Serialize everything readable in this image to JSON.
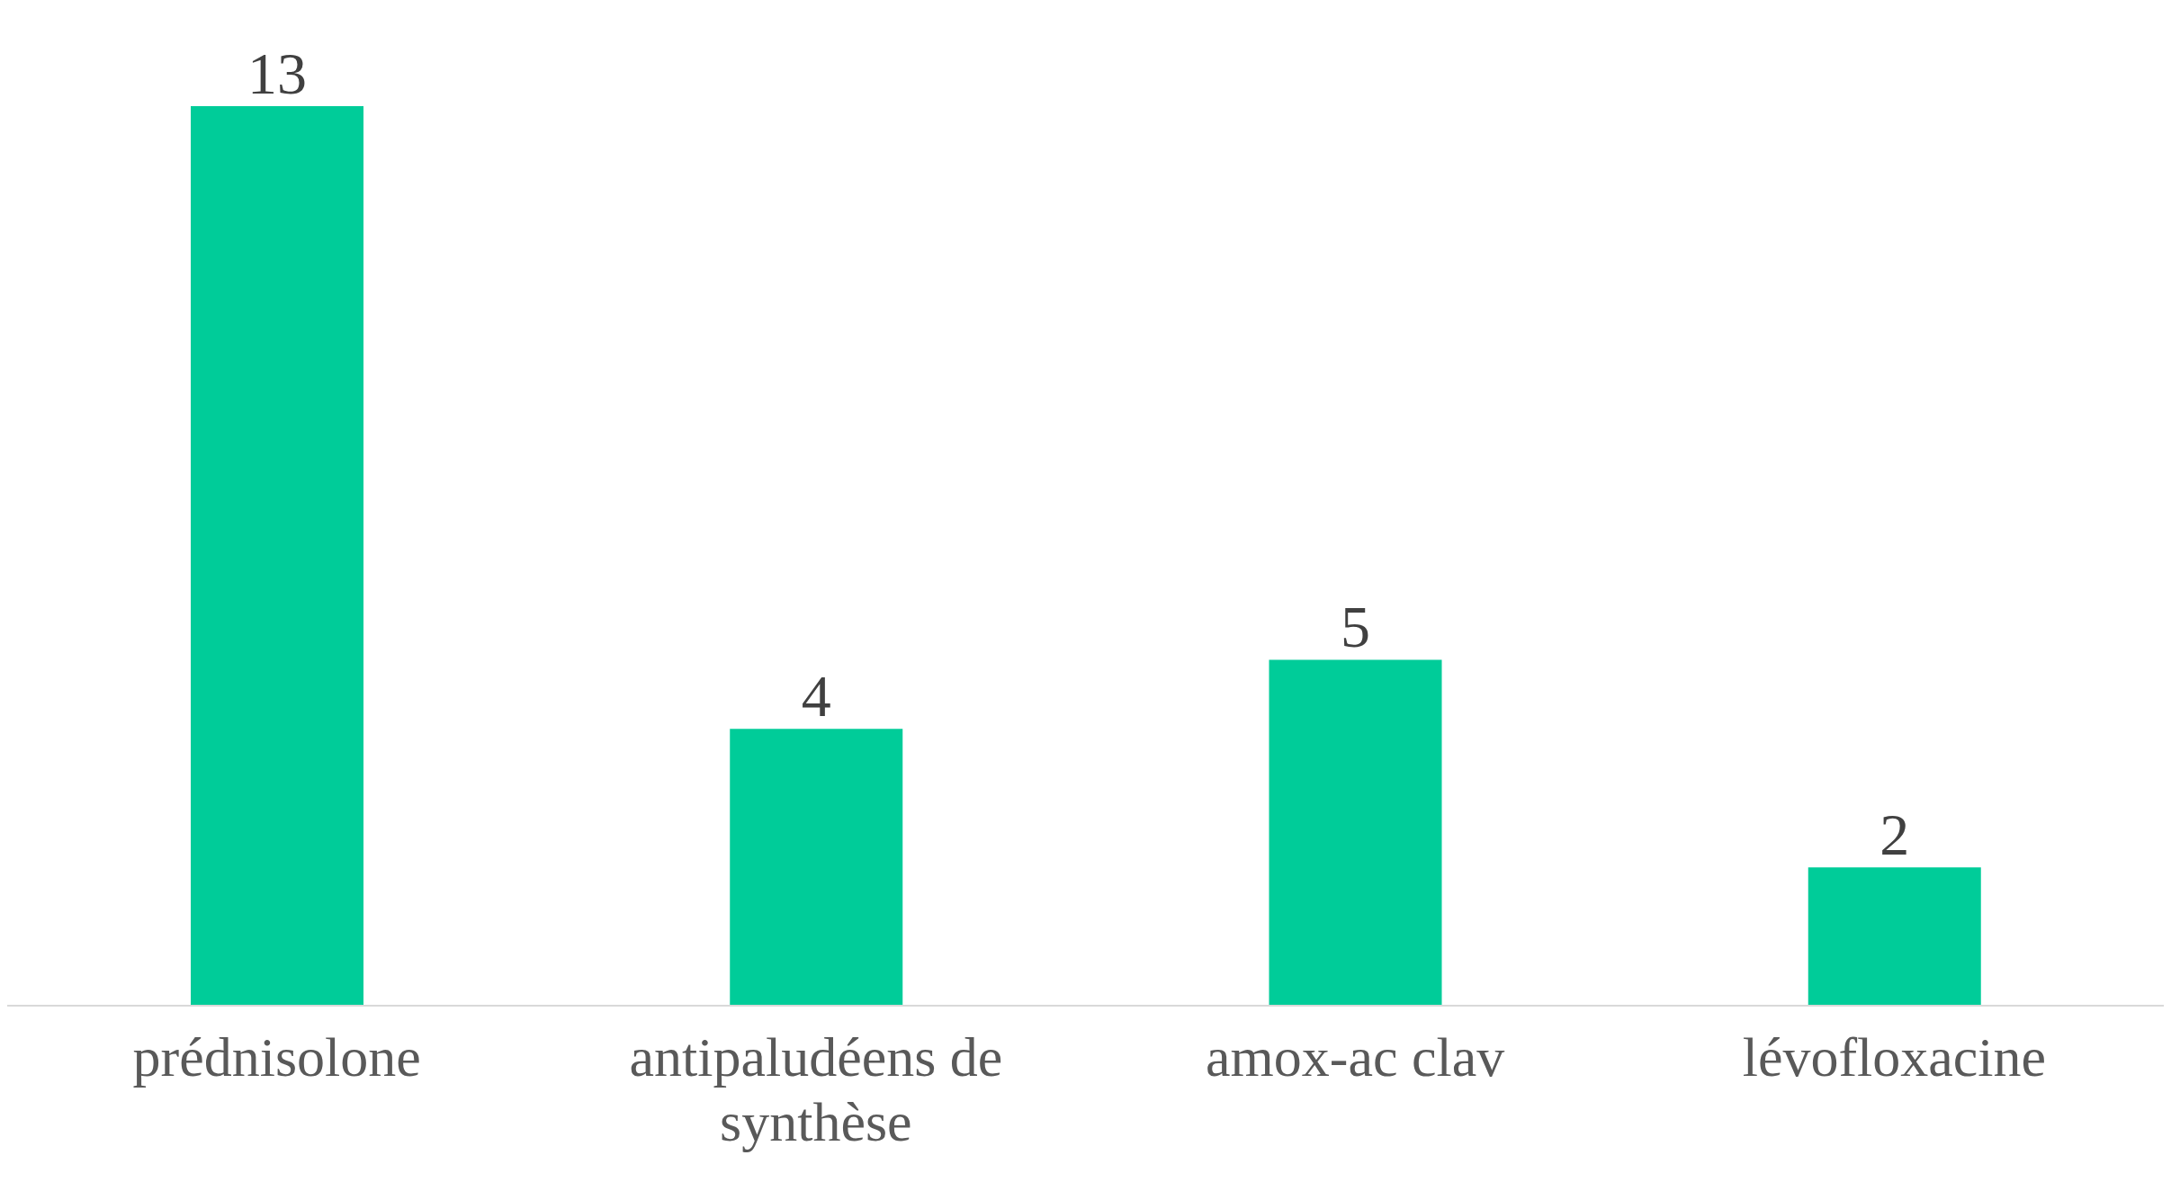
{
  "chart_data": {
    "type": "bar",
    "categories": [
      "prédnisolone",
      "antipaludéens de synthèse",
      "amox-ac clav",
      "lévofloxacine"
    ],
    "values": [
      13,
      4,
      5,
      2
    ],
    "color": "#00cc99",
    "data_labels": true,
    "grid": false
  }
}
